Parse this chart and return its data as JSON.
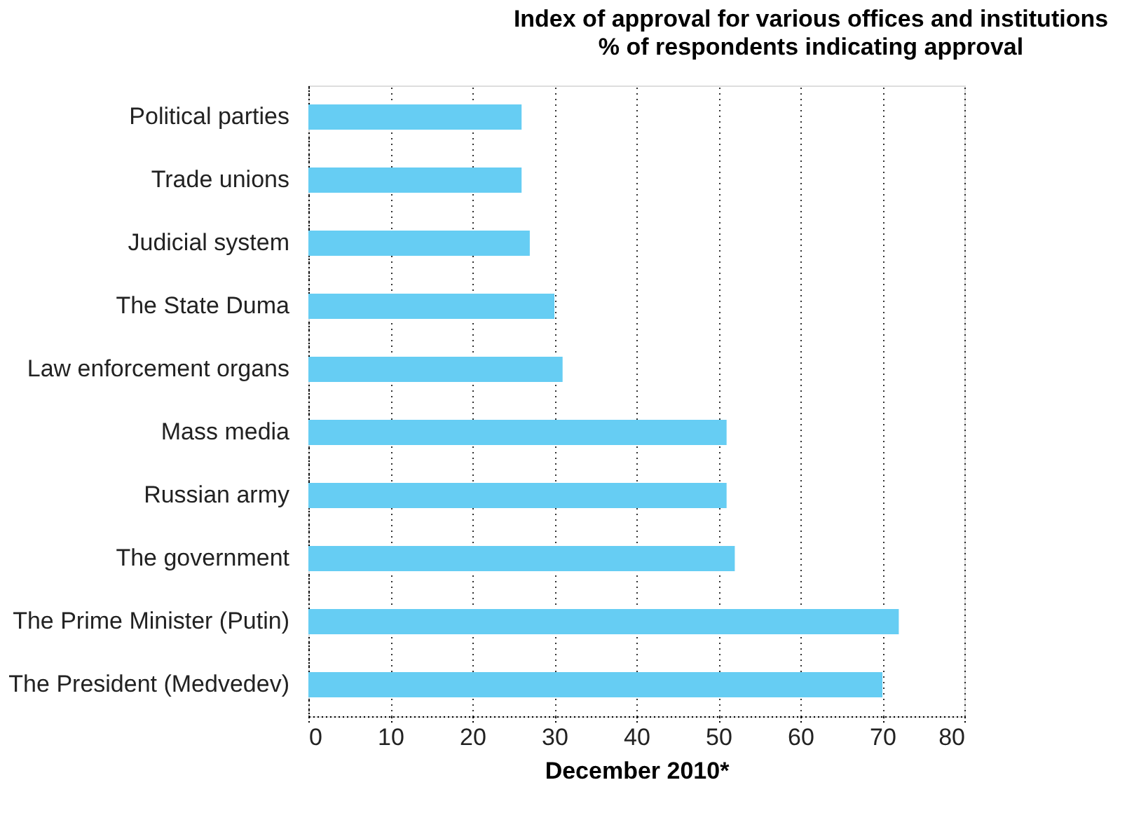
{
  "chart_data": {
    "type": "bar",
    "orientation": "horizontal",
    "title": "Index of approval for various offices and institutions",
    "subtitle": "% of respondents indicating approval",
    "xlabel": "December 2010*",
    "categories": [
      "Political parties",
      "Trade unions",
      "Judicial system",
      "The State Duma",
      "Law enforcement organs",
      "Mass media",
      "Russian army",
      "The government",
      "The Prime Minister (Putin)",
      "The President (Medvedev)"
    ],
    "values": [
      26,
      26,
      27,
      30,
      31,
      51,
      51,
      52,
      72,
      70
    ],
    "color": "#66cdf3",
    "xlim": [
      0,
      80
    ],
    "xticks": [
      0,
      10,
      20,
      30,
      40,
      50,
      60,
      70,
      80
    ],
    "grid": "x"
  }
}
